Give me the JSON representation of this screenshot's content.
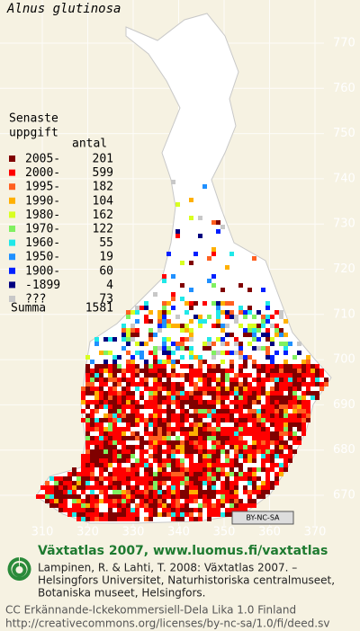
{
  "title": "Alnus glutinosa",
  "legend": {
    "heading": [
      "Senaste",
      "uppgift"
    ],
    "count_heading": "antal",
    "items": [
      {
        "label": "2005-",
        "count": 201,
        "color": "#800000"
      },
      {
        "label": "2000-",
        "count": 599,
        "color": "#ff0000"
      },
      {
        "label": "1995-",
        "count": 182,
        "color": "#ff6020"
      },
      {
        "label": "1990-",
        "count": 104,
        "color": "#ffb000"
      },
      {
        "label": "1980-",
        "count": 162,
        "color": "#d8ff20"
      },
      {
        "label": "1970-",
        "count": 122,
        "color": "#80f060"
      },
      {
        "label": "1960-",
        "count": 55,
        "color": "#20e8e8"
      },
      {
        "label": "1950-",
        "count": 19,
        "color": "#2090ff"
      },
      {
        "label": "1900-",
        "count": 60,
        "color": "#0020ff"
      },
      {
        "label": "-1899",
        "count": 4,
        "color": "#000080"
      },
      {
        "label": "???",
        "count": 73,
        "color": "#c8c8c8"
      }
    ],
    "total_label": "Summa",
    "total": 1581
  },
  "grid": {
    "y_labels": [
      770,
      760,
      750,
      740,
      730,
      720,
      710,
      700,
      690,
      680,
      670
    ],
    "x_labels": [
      310,
      320,
      330,
      340,
      350,
      360,
      370
    ]
  },
  "badge": "BY-NC-SA",
  "footer": {
    "site": "Växtatlas 2007, www.luomus.fi/vaxtatlas",
    "citation": [
      "Lampinen, R. & Lahti, T. 2008: Växtatlas 2007. –",
      "Helsingfors Universitet, Naturhistoriska centralmuseet,",
      "Botaniska museet, Helsingfors."
    ],
    "license": "CC Erkännande-Ickekommersiell-Dela Lika 1.0 Finland",
    "license_url": "http://creativecommons.org/licenses/by-nc-sa/1.0/fi/deed.sv"
  }
}
